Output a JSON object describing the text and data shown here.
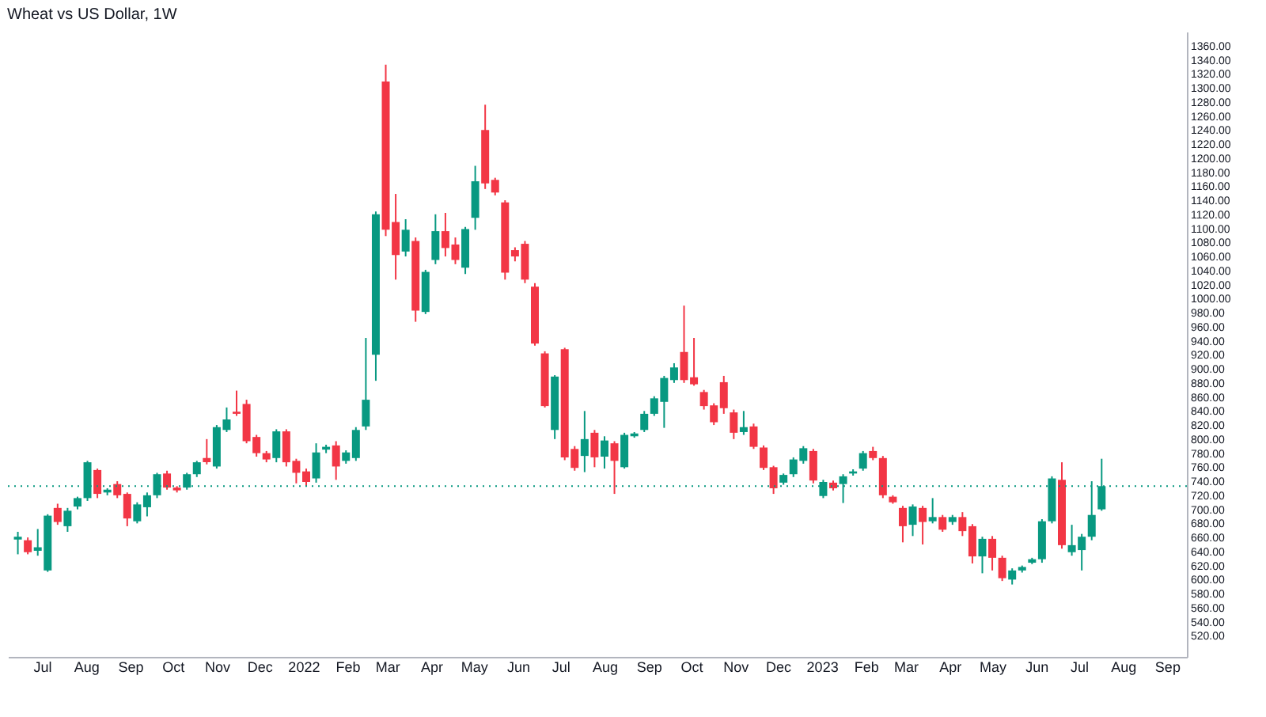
{
  "chart_data": {
    "type": "candlestick",
    "title": "Wheat vs US Dollar, 1W",
    "x": [
      "2021-06-14",
      "2021-06-21",
      "2021-06-28",
      "2021-07-05",
      "2021-07-12",
      "2021-07-19",
      "2021-07-26",
      "2021-08-02",
      "2021-08-09",
      "2021-08-16",
      "2021-08-23",
      "2021-08-30",
      "2021-09-06",
      "2021-09-13",
      "2021-09-20",
      "2021-09-27",
      "2021-10-04",
      "2021-10-11",
      "2021-10-18",
      "2021-10-25",
      "2021-11-01",
      "2021-11-08",
      "2021-11-15",
      "2021-11-22",
      "2021-11-29",
      "2021-12-06",
      "2021-12-13",
      "2021-12-20",
      "2021-12-27",
      "2022-01-03",
      "2022-01-10",
      "2022-01-17",
      "2022-01-24",
      "2022-01-31",
      "2022-02-07",
      "2022-02-14",
      "2022-02-21",
      "2022-02-28",
      "2022-03-07",
      "2022-03-14",
      "2022-03-21",
      "2022-03-28",
      "2022-04-04",
      "2022-04-11",
      "2022-04-18",
      "2022-04-25",
      "2022-05-02",
      "2022-05-09",
      "2022-05-16",
      "2022-05-23",
      "2022-05-30",
      "2022-06-06",
      "2022-06-13",
      "2022-06-20",
      "2022-06-27",
      "2022-07-04",
      "2022-07-11",
      "2022-07-18",
      "2022-07-25",
      "2022-08-01",
      "2022-08-08",
      "2022-08-15",
      "2022-08-22",
      "2022-08-29",
      "2022-09-05",
      "2022-09-12",
      "2022-09-19",
      "2022-09-26",
      "2022-10-03",
      "2022-10-10",
      "2022-10-17",
      "2022-10-24",
      "2022-10-31",
      "2022-11-07",
      "2022-11-14",
      "2022-11-21",
      "2022-11-28",
      "2022-12-05",
      "2022-12-12",
      "2022-12-19",
      "2022-12-26",
      "2023-01-02",
      "2023-01-09",
      "2023-01-16",
      "2023-01-23",
      "2023-01-30",
      "2023-02-06",
      "2023-02-13",
      "2023-02-20",
      "2023-02-27",
      "2023-03-06",
      "2023-03-13",
      "2023-03-20",
      "2023-03-27",
      "2023-04-03",
      "2023-04-10",
      "2023-04-17",
      "2023-04-24",
      "2023-05-01",
      "2023-05-08",
      "2023-05-15",
      "2023-05-22",
      "2023-05-29",
      "2023-06-05",
      "2023-06-12",
      "2023-06-19",
      "2023-06-26",
      "2023-07-03",
      "2023-07-10",
      "2023-07-17"
    ],
    "ohlc": [
      [
        657,
        668,
        636,
        661
      ],
      [
        656,
        660,
        636,
        639
      ],
      [
        641,
        672,
        634,
        646
      ],
      [
        613,
        693,
        611,
        691
      ],
      [
        702,
        708,
        678,
        682
      ],
      [
        676,
        702,
        668,
        698
      ],
      [
        704,
        718,
        700,
        716
      ],
      [
        716,
        769,
        712,
        767
      ],
      [
        756,
        758,
        716,
        722
      ],
      [
        724,
        730,
        720,
        728
      ],
      [
        736,
        740,
        716,
        720
      ],
      [
        722,
        724,
        676,
        687
      ],
      [
        683,
        710,
        680,
        707
      ],
      [
        703,
        724,
        690,
        720
      ],
      [
        720,
        752,
        716,
        750
      ],
      [
        751,
        755,
        728,
        731
      ],
      [
        731,
        733,
        724,
        727
      ],
      [
        731,
        752,
        728,
        750
      ],
      [
        750,
        769,
        746,
        767
      ],
      [
        773,
        800,
        764,
        767
      ],
      [
        761,
        820,
        758,
        817
      ],
      [
        813,
        845,
        810,
        828
      ],
      [
        839,
        869,
        833,
        836
      ],
      [
        850,
        856,
        794,
        797
      ],
      [
        803,
        806,
        775,
        780
      ],
      [
        780,
        783,
        767,
        771
      ],
      [
        773,
        814,
        767,
        811
      ],
      [
        811,
        814,
        761,
        767
      ],
      [
        769,
        772,
        737,
        752
      ],
      [
        754,
        758,
        733,
        739
      ],
      [
        744,
        794,
        738,
        781
      ],
      [
        785,
        792,
        780,
        789
      ],
      [
        791,
        797,
        742,
        761
      ],
      [
        769,
        784,
        765,
        781
      ],
      [
        773,
        817,
        769,
        813
      ],
      [
        818,
        944,
        813,
        856
      ],
      [
        920,
        1124,
        883,
        1120
      ],
      [
        1309,
        1333,
        1089,
        1098
      ],
      [
        1109,
        1149,
        1027,
        1062
      ],
      [
        1067,
        1113,
        1060,
        1098
      ],
      [
        1082,
        1087,
        967,
        983
      ],
      [
        981,
        1041,
        978,
        1038
      ],
      [
        1055,
        1120,
        1049,
        1096
      ],
      [
        1096,
        1122,
        1060,
        1072
      ],
      [
        1077,
        1087,
        1049,
        1055
      ],
      [
        1044,
        1102,
        1035,
        1099
      ],
      [
        1115,
        1189,
        1098,
        1167
      ],
      [
        1240,
        1276,
        1156,
        1164
      ],
      [
        1169,
        1172,
        1147,
        1151
      ],
      [
        1137,
        1140,
        1027,
        1037
      ],
      [
        1069,
        1073,
        1053,
        1060
      ],
      [
        1078,
        1082,
        1022,
        1027
      ],
      [
        1017,
        1022,
        933,
        936
      ],
      [
        922,
        925,
        845,
        847
      ],
      [
        813,
        891,
        800,
        889
      ],
      [
        928,
        930,
        770,
        774
      ],
      [
        786,
        790,
        755,
        759
      ],
      [
        776,
        840,
        753,
        800
      ],
      [
        809,
        813,
        760,
        774
      ],
      [
        775,
        804,
        758,
        798
      ],
      [
        794,
        797,
        722,
        769
      ],
      [
        760,
        809,
        758,
        806
      ],
      [
        804,
        810,
        802,
        808
      ],
      [
        813,
        840,
        810,
        836
      ],
      [
        836,
        861,
        833,
        858
      ],
      [
        853,
        890,
        816,
        887
      ],
      [
        884,
        908,
        880,
        902
      ],
      [
        924,
        990,
        880,
        884
      ],
      [
        888,
        944,
        876,
        878
      ],
      [
        867,
        870,
        842,
        847
      ],
      [
        848,
        851,
        820,
        824
      ],
      [
        881,
        890,
        836,
        844
      ],
      [
        838,
        842,
        800,
        809
      ],
      [
        810,
        840,
        806,
        817
      ],
      [
        818,
        822,
        786,
        789
      ],
      [
        788,
        791,
        756,
        759
      ],
      [
        760,
        762,
        722,
        730
      ],
      [
        738,
        751,
        735,
        749
      ],
      [
        750,
        774,
        746,
        771
      ],
      [
        769,
        790,
        765,
        787
      ],
      [
        783,
        786,
        737,
        741
      ],
      [
        719,
        742,
        716,
        739
      ],
      [
        738,
        741,
        727,
        730
      ],
      [
        736,
        750,
        709,
        747
      ],
      [
        751,
        757,
        748,
        754
      ],
      [
        758,
        783,
        755,
        780
      ],
      [
        783,
        789,
        770,
        773
      ],
      [
        773,
        776,
        716,
        720
      ],
      [
        718,
        720,
        708,
        710
      ],
      [
        702,
        705,
        653,
        676
      ],
      [
        678,
        707,
        662,
        704
      ],
      [
        702,
        705,
        650,
        682
      ],
      [
        683,
        716,
        680,
        689
      ],
      [
        689,
        692,
        668,
        671
      ],
      [
        682,
        692,
        678,
        689
      ],
      [
        689,
        696,
        662,
        669
      ],
      [
        676,
        679,
        623,
        633
      ],
      [
        633,
        661,
        609,
        658
      ],
      [
        658,
        662,
        613,
        631
      ],
      [
        631,
        634,
        598,
        602
      ],
      [
        600,
        616,
        593,
        613
      ],
      [
        613,
        620,
        610,
        618
      ],
      [
        624,
        631,
        622,
        629
      ],
      [
        629,
        686,
        624,
        683
      ],
      [
        683,
        747,
        680,
        744
      ],
      [
        742,
        767,
        644,
        649
      ],
      [
        639,
        678,
        634,
        649
      ],
      [
        642,
        665,
        613,
        661
      ],
      [
        661,
        740,
        656,
        692
      ],
      [
        700,
        772,
        698,
        733
      ]
    ],
    "colors": [
      "#089981",
      "#f23645",
      "#089981",
      "#089981",
      "#f23645",
      "#089981",
      "#089981",
      "#089981",
      "#f23645",
      "#089981",
      "#f23645",
      "#f23645",
      "#089981",
      "#089981",
      "#089981",
      "#f23645",
      "#f23645",
      "#089981",
      "#089981",
      "#f23645",
      "#089981",
      "#089981",
      "#f23645",
      "#f23645",
      "#f23645",
      "#f23645",
      "#089981",
      "#f23645",
      "#f23645",
      "#f23645",
      "#089981",
      "#089981",
      "#f23645",
      "#089981",
      "#089981",
      "#089981",
      "#089981",
      "#f23645",
      "#f23645",
      "#089981",
      "#f23645",
      "#089981",
      "#089981",
      "#f23645",
      "#f23645",
      "#089981",
      "#089981",
      "#f23645",
      "#f23645",
      "#f23645",
      "#f23645",
      "#f23645",
      "#f23645",
      "#f23645",
      "#089981",
      "#f23645",
      "#f23645",
      "#089981",
      "#f23645",
      "#089981",
      "#f23645",
      "#089981",
      "#089981",
      "#089981",
      "#089981",
      "#089981",
      "#089981",
      "#f23645",
      "#f23645",
      "#f23645",
      "#f23645",
      "#f23645",
      "#f23645",
      "#089981",
      "#f23645",
      "#f23645",
      "#f23645",
      "#089981",
      "#089981",
      "#089981",
      "#f23645",
      "#089981",
      "#f23645",
      "#089981",
      "#089981",
      "#089981",
      "#f23645",
      "#f23645",
      "#f23645",
      "#f23645",
      "#089981",
      "#f23645",
      "#089981",
      "#f23645",
      "#089981",
      "#f23645",
      "#f23645",
      "#089981",
      "#f23645",
      "#f23645",
      "#089981",
      "#089981",
      "#089981",
      "#089981",
      "#089981",
      "#f23645",
      "#089981",
      "#089981",
      "#089981",
      "#089981"
    ],
    "xlim": [
      "2021-06-07",
      "2023-09-15"
    ],
    "xticks": [
      {
        "value": "2021-07-01",
        "label": "Jul"
      },
      {
        "value": "2021-08-01",
        "label": "Aug"
      },
      {
        "value": "2021-09-01",
        "label": "Sep"
      },
      {
        "value": "2021-10-01",
        "label": "Oct"
      },
      {
        "value": "2021-11-01",
        "label": "Nov"
      },
      {
        "value": "2021-12-01",
        "label": "Dec"
      },
      {
        "value": "2022-01-01",
        "label": "2022"
      },
      {
        "value": "2022-02-01",
        "label": "Feb"
      },
      {
        "value": "2022-03-01",
        "label": "Mar"
      },
      {
        "value": "2022-04-01",
        "label": "Apr"
      },
      {
        "value": "2022-05-01",
        "label": "May"
      },
      {
        "value": "2022-06-01",
        "label": "Jun"
      },
      {
        "value": "2022-07-01",
        "label": "Jul"
      },
      {
        "value": "2022-08-01",
        "label": "Aug"
      },
      {
        "value": "2022-09-01",
        "label": "Sep"
      },
      {
        "value": "2022-10-01",
        "label": "Oct"
      },
      {
        "value": "2022-11-01",
        "label": "Nov"
      },
      {
        "value": "2022-12-01",
        "label": "Dec"
      },
      {
        "value": "2023-01-01",
        "label": "2023"
      },
      {
        "value": "2023-02-01",
        "label": "Feb"
      },
      {
        "value": "2023-03-01",
        "label": "Mar"
      },
      {
        "value": "2023-04-01",
        "label": "Apr"
      },
      {
        "value": "2023-05-01",
        "label": "May"
      },
      {
        "value": "2023-06-01",
        "label": "Jun"
      },
      {
        "value": "2023-07-01",
        "label": "Jul"
      },
      {
        "value": "2023-08-01",
        "label": "Aug"
      },
      {
        "value": "2023-09-01",
        "label": "Sep"
      }
    ],
    "ylim": [
      490,
      1380
    ],
    "yticks": [
      {
        "value": 520,
        "label": "520.00"
      },
      {
        "value": 540,
        "label": "540.00"
      },
      {
        "value": 560,
        "label": "560.00"
      },
      {
        "value": 580,
        "label": "580.00"
      },
      {
        "value": 600,
        "label": "600.00"
      },
      {
        "value": 620,
        "label": "620.00"
      },
      {
        "value": 640,
        "label": "640.00"
      },
      {
        "value": 660,
        "label": "660.00"
      },
      {
        "value": 680,
        "label": "680.00"
      },
      {
        "value": 700,
        "label": "700.00"
      },
      {
        "value": 720,
        "label": "720.00"
      },
      {
        "value": 740,
        "label": "740.00"
      },
      {
        "value": 760,
        "label": "760.00"
      },
      {
        "value": 780,
        "label": "780.00"
      },
      {
        "value": 800,
        "label": "800.00"
      },
      {
        "value": 820,
        "label": "820.00"
      },
      {
        "value": 840,
        "label": "840.00"
      },
      {
        "value": 860,
        "label": "860.00"
      },
      {
        "value": 880,
        "label": "880.00"
      },
      {
        "value": 900,
        "label": "900.00"
      },
      {
        "value": 920,
        "label": "920.00"
      },
      {
        "value": 940,
        "label": "940.00"
      },
      {
        "value": 960,
        "label": "960.00"
      },
      {
        "value": 980,
        "label": "980.00"
      },
      {
        "value": 1000,
        "label": "1000.00"
      },
      {
        "value": 1020,
        "label": "1020.00"
      },
      {
        "value": 1040,
        "label": "1040.00"
      },
      {
        "value": 1060,
        "label": "1060.00"
      },
      {
        "value": 1080,
        "label": "1080.00"
      },
      {
        "value": 1100,
        "label": "1100.00"
      },
      {
        "value": 1120,
        "label": "1120.00"
      },
      {
        "value": 1140,
        "label": "1140.00"
      },
      {
        "value": 1160,
        "label": "1160.00"
      },
      {
        "value": 1180,
        "label": "1180.00"
      },
      {
        "value": 1200,
        "label": "1200.00"
      },
      {
        "value": 1220,
        "label": "1220.00"
      },
      {
        "value": 1240,
        "label": "1240.00"
      },
      {
        "value": 1260,
        "label": "1260.00"
      },
      {
        "value": 1280,
        "label": "1280.00"
      },
      {
        "value": 1300,
        "label": "1300.00"
      },
      {
        "value": 1320,
        "label": "1320.00"
      },
      {
        "value": 1340,
        "label": "1340.00"
      },
      {
        "value": 1360,
        "label": "1360.00"
      }
    ],
    "ref_lines": [
      {
        "axis": "y",
        "value": 733,
        "color": "#089981",
        "line_style": "dotted"
      }
    ]
  }
}
